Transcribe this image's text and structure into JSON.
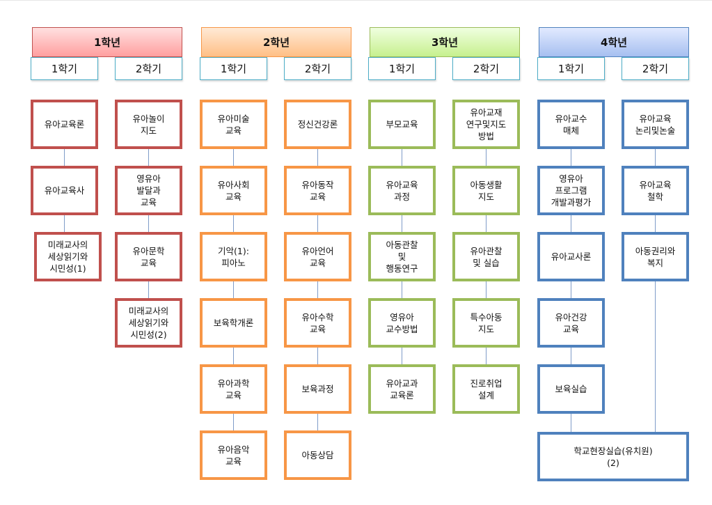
{
  "years": [
    {
      "title": "1학년",
      "color": "#c0504d",
      "grad": [
        "#ffe0e0",
        "#ff9f9f"
      ],
      "semesters": [
        {
          "label": "1학기",
          "courses": [
            "유아교육론",
            "유아교육사",
            "미래교사의\n세상읽기와\n시민성(1)"
          ]
        },
        {
          "label": "2학기",
          "courses": [
            "유아놀이\n지도",
            "영유아\n발달과\n교육",
            "유아문학\n교육",
            "미래교사의\n세상읽기와\n시민성(2)"
          ]
        }
      ]
    },
    {
      "title": "2학년",
      "color": "#f79646",
      "grad": [
        "#ffead6",
        "#ffbf85"
      ],
      "semesters": [
        {
          "label": "1학기",
          "courses": [
            "유아미술\n교육",
            "유아사회\n교육",
            "기악(1):\n피아노",
            "보육학개론",
            "유아과학\n교육",
            "유아음악\n교육"
          ]
        },
        {
          "label": "2학기",
          "courses": [
            "정신건강론",
            "유아동작\n교육",
            "유아언어\n교육",
            "유아수학\n교육",
            "보육과정",
            "아동상담"
          ]
        }
      ]
    },
    {
      "title": "3학년",
      "color": "#9bbb59",
      "grad": [
        "#f0ffe0",
        "#c6f08e"
      ],
      "semesters": [
        {
          "label": "1학기",
          "courses": [
            "부모교육",
            "유아교육\n과정",
            "아동관찰\n및\n행동연구",
            "영유아\n교수방법",
            "유아교과\n교육론"
          ]
        },
        {
          "label": "2학기",
          "courses": [
            "유아교재\n연구및지도\n방법",
            "아동생활\n지도",
            "유아관찰\n및 실습",
            "특수아동\n지도",
            "진로취업\n설계"
          ]
        }
      ]
    },
    {
      "title": "4학년",
      "color": "#4f81bd",
      "grad": [
        "#e2eaff",
        "#a6bff0"
      ],
      "semesters": [
        {
          "label": "1학기",
          "courses": [
            "유아교수\n매체",
            "영유아\n프로그램\n개발과평가",
            "유아교사론",
            "유아건강\n교육",
            "보육실습"
          ]
        },
        {
          "label": "2학기",
          "courses": [
            "유아교육\n논리및논술",
            "유아교육\n철학",
            "아동권리와\n복지"
          ]
        }
      ]
    }
  ],
  "capstone": {
    "label": "학교현장실습(유치원)\n(2)",
    "color": "#4f81bd"
  }
}
